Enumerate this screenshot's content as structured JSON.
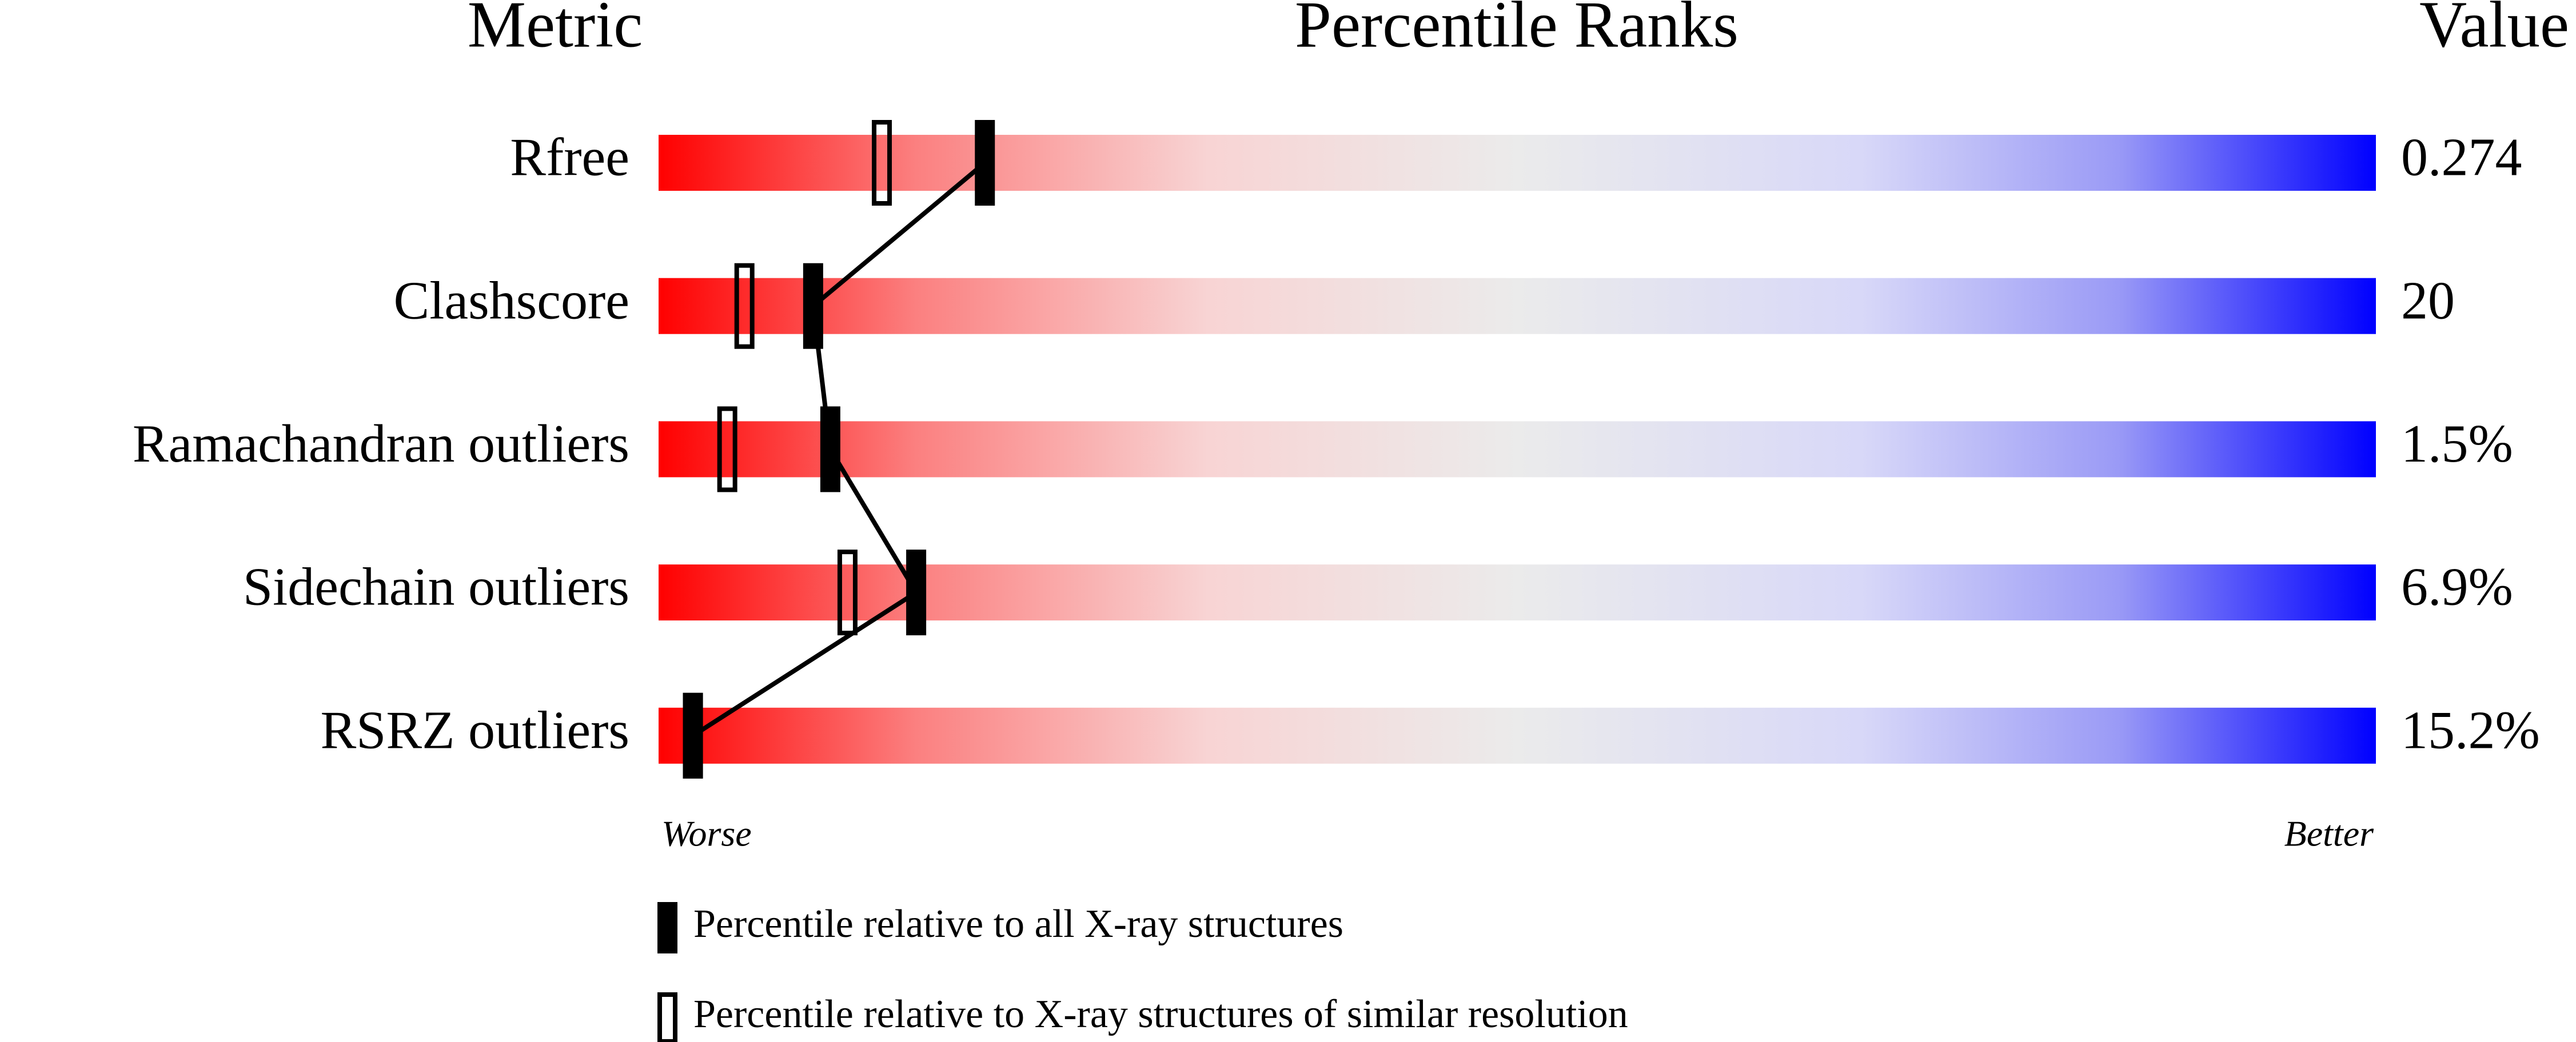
{
  "chart_data": {
    "type": "percentile_slider",
    "metric_header": "Metric",
    "title": "Percentile Ranks",
    "value_header": "Value",
    "categories": [
      "Rfree",
      "Clashscore",
      "Ramachandran outliers",
      "Sidechain outliers",
      "RSRZ outliers"
    ],
    "values": [
      "0.274",
      "20",
      "1.5%",
      "6.9%",
      "15.2%"
    ],
    "xlim": [
      0,
      100
    ],
    "worse_label": "Worse",
    "better_label": "Better",
    "series": [
      {
        "name": "Percentile relative to all X-ray structures",
        "style": "filled",
        "color": "#000000",
        "values": [
          19,
          9,
          10,
          15,
          2
        ]
      },
      {
        "name": "Percentile relative to X-ray structures of similar resolution",
        "style": "open",
        "color": "#000000",
        "values": [
          13,
          5,
          4,
          11,
          2
        ]
      }
    ],
    "connect_series": 0
  }
}
